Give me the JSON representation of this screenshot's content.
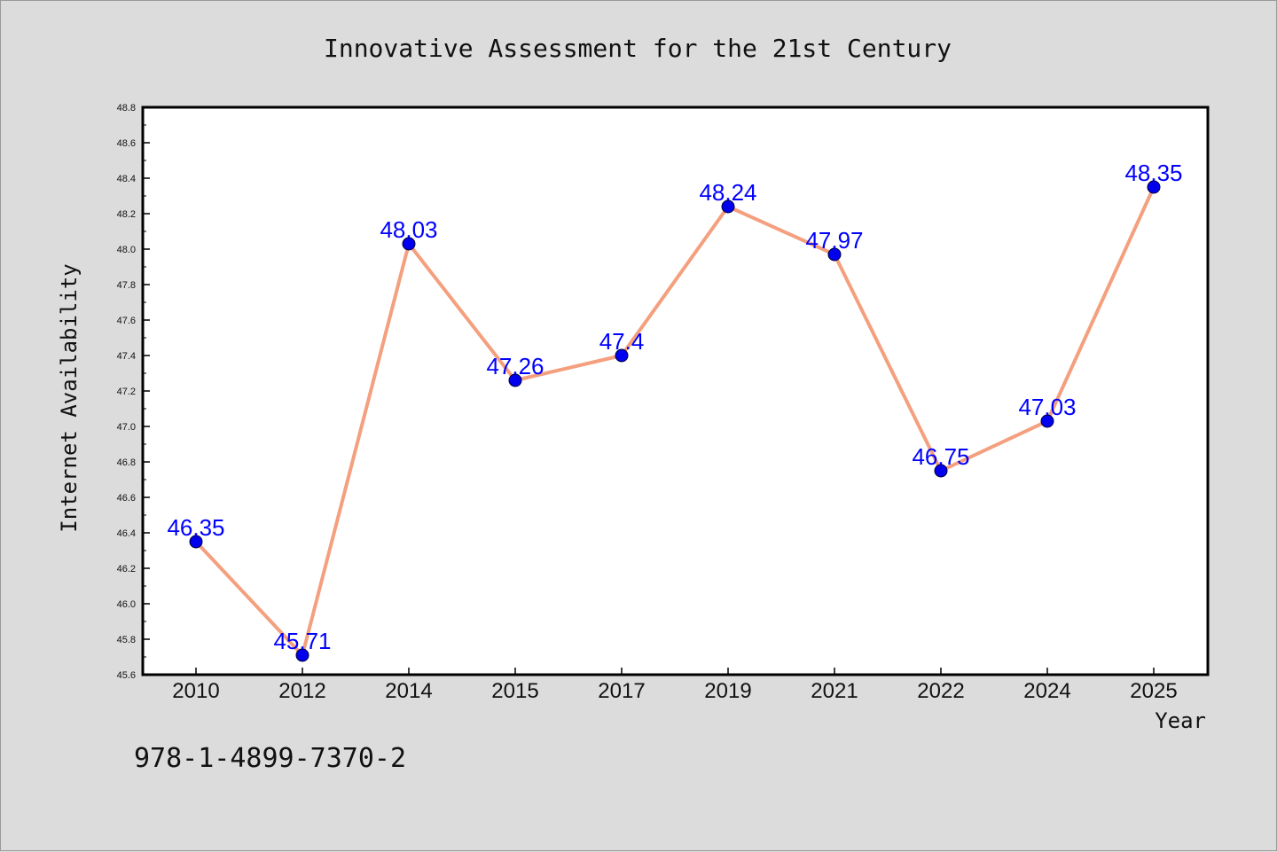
{
  "chart_data": {
    "type": "line",
    "title": "Innovative Assessment for the 21st Century",
    "xlabel": "Year",
    "ylabel": "Internet Availability",
    "categories": [
      "2010",
      "2012",
      "2014",
      "2015",
      "2017",
      "2019",
      "2021",
      "2022",
      "2024",
      "2025"
    ],
    "series": [
      {
        "values": [
          46.35,
          45.71,
          48.03,
          47.26,
          47.4,
          48.24,
          47.97,
          46.75,
          47.03,
          48.35
        ],
        "labels": [
          "46.35",
          "45.71",
          "48.03",
          "47.26",
          "47.4",
          "48.24",
          "47.97",
          "46.75",
          "47.03",
          "48.35"
        ],
        "line_color": "#f4a07f",
        "marker_color": "#0000ee"
      }
    ],
    "ylim": [
      45.6,
      48.8
    ],
    "yticks": [
      "45.6",
      "45.8",
      "46.0",
      "46.2",
      "46.4",
      "46.6",
      "46.8",
      "47.0",
      "47.2",
      "47.4",
      "47.6",
      "47.8",
      "48.0",
      "48.2",
      "48.4",
      "48.6",
      "48.8"
    ],
    "label_color": "#0000ff",
    "grid": false
  },
  "footer_text": "978-1-4899-7370-2"
}
